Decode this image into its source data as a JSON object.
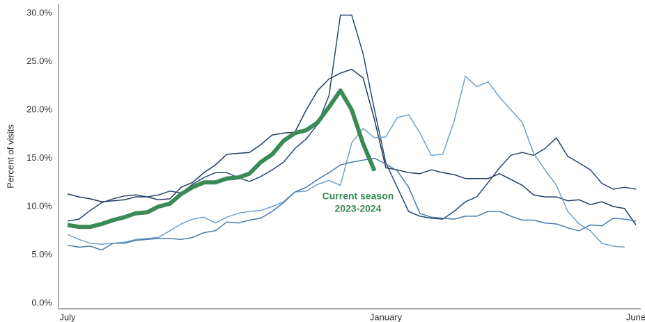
{
  "chart_data": {
    "type": "line",
    "y_label": "Percent of visits",
    "annotation": [
      "Current season",
      "2023-2024"
    ],
    "categories": [
      "July",
      null,
      null,
      null,
      null,
      null,
      null,
      null,
      null,
      null,
      null,
      null,
      null,
      null,
      null,
      null,
      null,
      null,
      null,
      null,
      null,
      null,
      null,
      null,
      null,
      null,
      null,
      null,
      "January",
      null,
      null,
      null,
      null,
      null,
      null,
      null,
      null,
      null,
      null,
      null,
      null,
      null,
      null,
      null,
      null,
      null,
      null,
      null,
      null,
      null,
      "June"
    ],
    "ylim": [
      0,
      30
    ],
    "yticks": [
      {
        "value": 0,
        "label": "0.0%"
      },
      {
        "value": 5,
        "label": "5.0%"
      },
      {
        "value": 10,
        "label": "10.0%"
      },
      {
        "value": 15,
        "label": "15.0%"
      },
      {
        "value": 20,
        "label": "20.0%"
      },
      {
        "value": 25,
        "label": "25.0%"
      },
      {
        "value": 30,
        "label": "30.0%"
      }
    ],
    "series": [
      {
        "color": "#1f3a5f",
        "width": 1.5,
        "values": [
          11.3,
          11.0,
          10.8,
          10.5,
          10.6,
          10.7,
          11.0,
          11.0,
          10.7,
          10.8,
          12.0,
          12.5,
          13.5,
          14.3,
          15.4,
          15.5,
          15.6,
          16.4,
          17.4,
          17.6,
          17.7,
          20.0,
          22.0,
          23.2,
          23.8,
          24.2,
          23.3,
          19.0,
          14.0,
          13.8,
          13.5,
          13.4,
          13.8,
          13.5,
          13.3,
          12.9,
          12.9,
          12.9,
          13.4,
          12.8,
          12.2,
          11.2,
          11.0,
          11.0,
          10.6,
          10.7,
          10.2,
          10.5,
          10.0,
          9.8,
          8.1
        ]
      },
      {
        "color": "#27486f",
        "width": 1.5,
        "values": [
          8.5,
          8.7,
          9.6,
          10.4,
          10.8,
          11.1,
          11.2,
          11.0,
          11.2,
          11.6,
          11.4,
          12.3,
          13.0,
          13.5,
          13.5,
          13.0,
          12.6,
          13.1,
          13.8,
          14.6,
          16.0,
          17.0,
          18.5,
          21.5,
          29.8,
          29.8,
          25.8,
          20.0,
          14.5,
          12.0,
          9.5,
          9.0,
          8.8,
          8.7,
          9.5,
          10.5,
          11.0,
          12.5,
          14.0,
          15.3,
          15.6,
          15.3,
          16.0,
          17.1,
          15.2,
          14.5,
          13.8,
          12.4,
          11.8,
          12.0,
          11.8
        ]
      },
      {
        "color": "#6f9fc6",
        "width": 1.5,
        "values": [
          7.1,
          6.6,
          6.2,
          6.1,
          6.2,
          6.3,
          6.6,
          6.7,
          6.8,
          7.5,
          8.2,
          8.7,
          8.9,
          8.3,
          8.9,
          9.3,
          9.5,
          9.6,
          10.0,
          10.5,
          11.5,
          11.6,
          12.3,
          12.7,
          12.2,
          16.6,
          18.1,
          17.1,
          17.2,
          19.2,
          19.5,
          17.6,
          15.3,
          15.4,
          18.8,
          23.5,
          22.4,
          22.9,
          21.3,
          20.0,
          18.7,
          15.5,
          13.8,
          12.2,
          9.5,
          8.2,
          7.5,
          6.2,
          5.9,
          5.8,
          null
        ]
      },
      {
        "color": "#4a7aa8",
        "width": 1.5,
        "values": [
          6.0,
          5.8,
          5.9,
          5.5,
          6.2,
          6.2,
          6.5,
          6.6,
          6.7,
          6.7,
          6.6,
          6.8,
          7.3,
          7.5,
          8.4,
          8.3,
          8.6,
          8.8,
          9.5,
          10.4,
          11.5,
          12.0,
          12.8,
          13.5,
          14.3,
          14.6,
          14.8,
          15.0,
          14.4,
          13.7,
          12.0,
          9.3,
          8.9,
          8.8,
          8.7,
          9.0,
          9.0,
          9.5,
          9.5,
          9.0,
          8.6,
          8.6,
          8.3,
          8.2,
          7.8,
          7.5,
          8.1,
          8.0,
          8.8,
          8.7,
          8.5
        ]
      },
      {
        "color": "#3a8a55",
        "width": 6,
        "values": [
          8.1,
          7.9,
          7.9,
          8.2,
          8.6,
          8.9,
          9.3,
          9.4,
          10.0,
          10.3,
          11.3,
          12.0,
          12.5,
          12.5,
          12.9,
          13.0,
          13.4,
          14.6,
          15.4,
          16.8,
          17.6,
          17.9,
          18.7,
          20.3,
          22.0,
          20.0,
          16.5,
          13.7,
          null,
          null,
          null,
          null,
          null,
          null,
          null,
          null,
          null,
          null,
          null,
          null,
          null,
          null,
          null,
          null,
          null,
          null,
          null,
          null,
          null,
          null,
          null
        ]
      }
    ]
  }
}
